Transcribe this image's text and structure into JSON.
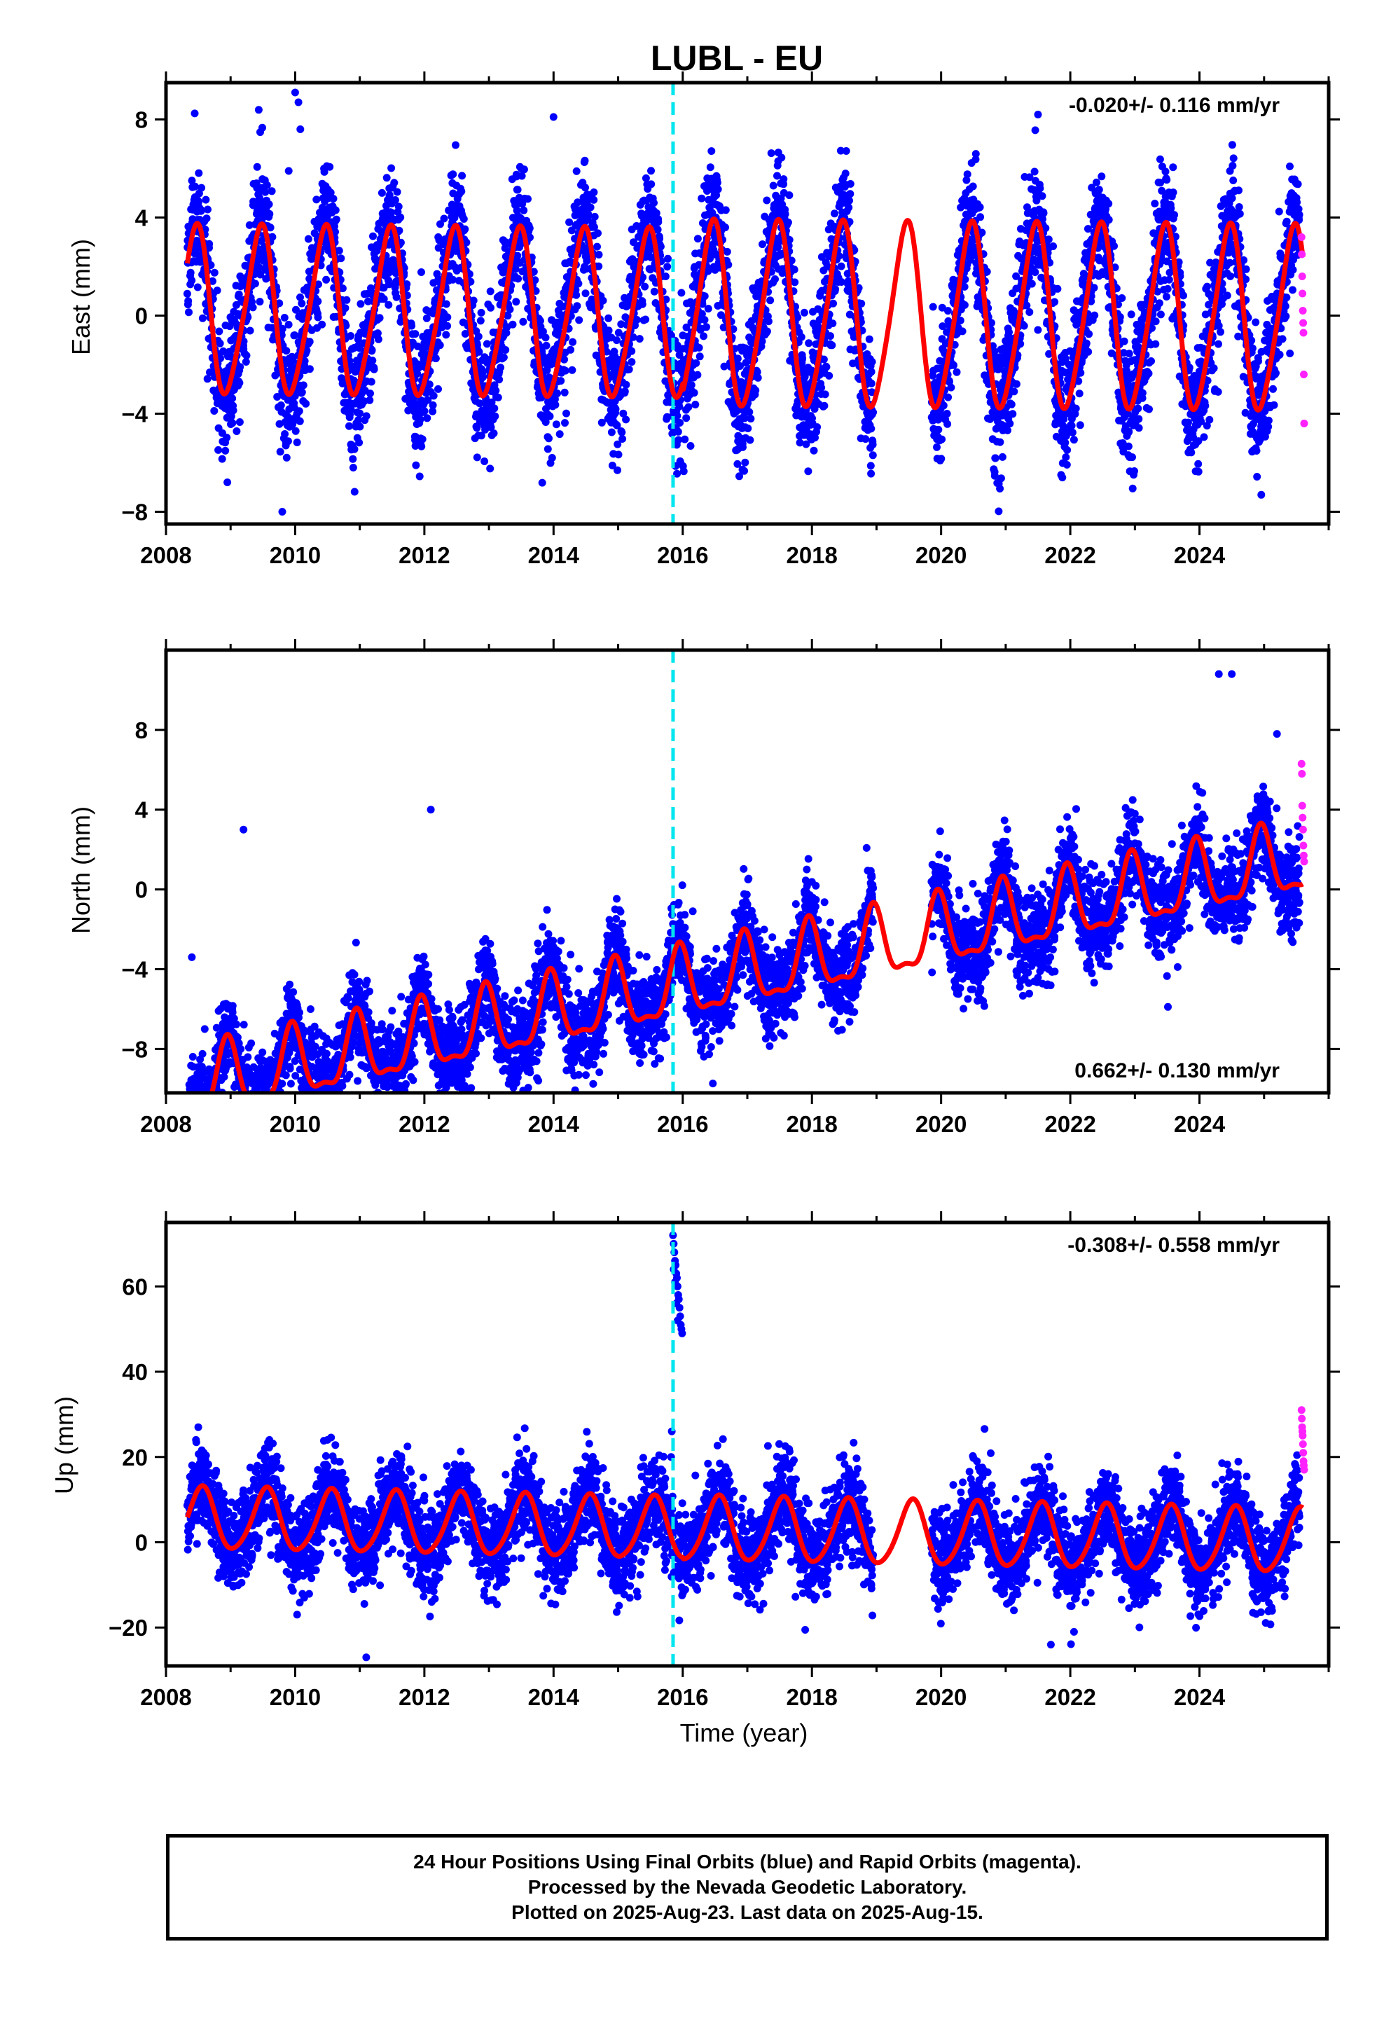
{
  "title": "LUBL - EU",
  "colors": {
    "final": "#0000ff",
    "rapid": "#ff22ff",
    "model": "#ff0000",
    "event": "#00e5ee"
  },
  "chart_data": [
    {
      "type": "scatter",
      "ylabel": "East (mm)",
      "xlabel": "",
      "xlim": [
        2008,
        2026
      ],
      "ylim": [
        -8.5,
        9.5
      ],
      "xticks": [
        2008,
        2010,
        2012,
        2014,
        2016,
        2018,
        2020,
        2022,
        2024
      ],
      "yticks": [
        -8,
        -4,
        0,
        4,
        8
      ],
      "ytick_labels": [
        "−8",
        "−4",
        "0",
        "4",
        "8"
      ],
      "rate_label": "-0.020+/- 0.116 mm/yr",
      "rate_position": "top-right",
      "event_line_x": 2015.85,
      "gaps": [
        [
          2018.95,
          2019.85
        ]
      ],
      "model": {
        "trend": -0.02,
        "offset": 0.0,
        "annual_amp": 3.3,
        "annual_peak": 0.45,
        "semi_amp": 0.5,
        "semi_peak": 0.05,
        "amp_change": [
          2016.0,
          3.35,
          3.7
        ]
      },
      "scatter": {
        "start": 2008.33,
        "end": 2025.55,
        "noise": 1.3,
        "seed": 11
      },
      "rapid": {
        "start": 2025.58,
        "end": 2025.62,
        "values": [
          3.2,
          2.5,
          1.6,
          0.9,
          0.2,
          -0.3,
          -0.7,
          -2.4,
          -4.4
        ]
      },
      "outliers": [
        [
          2008.95,
          -6.8
        ],
        [
          2009.8,
          -8.0
        ],
        [
          2010.0,
          9.1
        ],
        [
          2010.05,
          8.7
        ],
        [
          2010.08,
          7.6
        ],
        [
          2014.0,
          8.1
        ],
        [
          2009.9,
          5.9
        ],
        [
          2021.5,
          8.2
        ],
        [
          2013.5,
          6.0
        ],
        [
          2010.9,
          -6.2
        ]
      ]
    },
    {
      "type": "scatter",
      "ylabel": "North (mm)",
      "xlabel": "",
      "xlim": [
        2008,
        2026
      ],
      "ylim": [
        -10.2,
        12.0
      ],
      "xticks": [
        2008,
        2010,
        2012,
        2014,
        2016,
        2018,
        2020,
        2022,
        2024
      ],
      "yticks": [
        -8,
        -4,
        0,
        4,
        8
      ],
      "ytick_labels": [
        "−8",
        "−4",
        "0",
        "4",
        "8"
      ],
      "rate_label": "0.662+/- 0.130 mm/yr",
      "rate_position": "bottom-right",
      "event_line_x": 2015.85,
      "gaps": [
        [
          2018.95,
          2019.85
        ]
      ],
      "model": {
        "trend": 0.662,
        "offset": -4.9,
        "annual_amp": 1.7,
        "annual_peak": 0.95,
        "semi_amp": 0.6,
        "semi_peak": 0.95,
        "amp_change": [
          2016.0,
          1.7,
          1.7
        ]
      },
      "scatter": {
        "start": 2008.33,
        "end": 2025.55,
        "noise": 1.15,
        "seed": 23
      },
      "rapid": {
        "start": 2025.58,
        "end": 2025.62,
        "values": [
          6.3,
          5.8,
          4.2,
          3.6,
          3.0,
          2.2,
          1.7,
          1.4
        ]
      },
      "outliers": [
        [
          2008.4,
          -3.4
        ],
        [
          2008.9,
          -9.4
        ],
        [
          2010.5,
          -9.6
        ],
        [
          2009.2,
          3.0
        ],
        [
          2012.1,
          4.0
        ],
        [
          2024.3,
          10.8
        ],
        [
          2024.5,
          10.8
        ],
        [
          2025.2,
          7.8
        ],
        [
          2008.6,
          -7.0
        ]
      ]
    },
    {
      "type": "scatter",
      "ylabel": "Up (mm)",
      "xlabel": "Time (year)",
      "xlim": [
        2008,
        2026
      ],
      "ylim": [
        -29,
        75
      ],
      "xticks": [
        2008,
        2010,
        2012,
        2014,
        2016,
        2018,
        2020,
        2022,
        2024
      ],
      "yticks": [
        -20,
        0,
        20,
        40,
        60
      ],
      "ytick_labels": [
        "−20",
        "0",
        "20",
        "40",
        "60"
      ],
      "rate_label": "-0.308+/- 0.558 mm/yr",
      "rate_position": "top-right",
      "event_line_x": 2015.85,
      "gaps": [
        [
          2018.95,
          2019.85
        ]
      ],
      "model": {
        "trend": -0.308,
        "offset": 3.0,
        "annual_amp": 7.2,
        "annual_peak": 0.55,
        "semi_amp": 0.9,
        "semi_peak": 0.1,
        "amp_change": [
          2016.0,
          7.2,
          7.5
        ]
      },
      "scatter": {
        "start": 2008.33,
        "end": 2025.55,
        "noise": 5.2,
        "seed": 37
      },
      "rapid": {
        "start": 2025.58,
        "end": 2025.62,
        "values": [
          31,
          29,
          27,
          26,
          25,
          23,
          21,
          19,
          18,
          17
        ]
      },
      "outliers": [
        [
          2015.85,
          72
        ],
        [
          2015.86,
          70
        ],
        [
          2015.87,
          68
        ],
        [
          2015.88,
          66
        ],
        [
          2015.89,
          65
        ],
        [
          2015.9,
          63
        ],
        [
          2015.91,
          62
        ],
        [
          2015.92,
          60
        ],
        [
          2015.93,
          58
        ],
        [
          2015.94,
          57
        ],
        [
          2015.95,
          55
        ],
        [
          2015.96,
          53
        ],
        [
          2015.97,
          51
        ],
        [
          2015.98,
          50
        ],
        [
          2015.99,
          49
        ],
        [
          2015.86,
          64
        ],
        [
          2015.88,
          61
        ],
        [
          2015.9,
          56
        ],
        [
          2015.92,
          52
        ],
        [
          2015.83,
          26
        ],
        [
          2015.82,
          20
        ],
        [
          2008.5,
          27
        ],
        [
          2011.1,
          -27
        ],
        [
          2021.7,
          -24
        ],
        [
          2009.6,
          24
        ],
        [
          2010.5,
          24
        ]
      ]
    }
  ],
  "footer": {
    "line1": "24 Hour Positions Using Final Orbits (blue) and Rapid Orbits (magenta).",
    "line2": "Processed by the Nevada Geodetic Laboratory.",
    "line3": "Plotted on 2025-Aug-23. Last data on 2025-Aug-15."
  }
}
